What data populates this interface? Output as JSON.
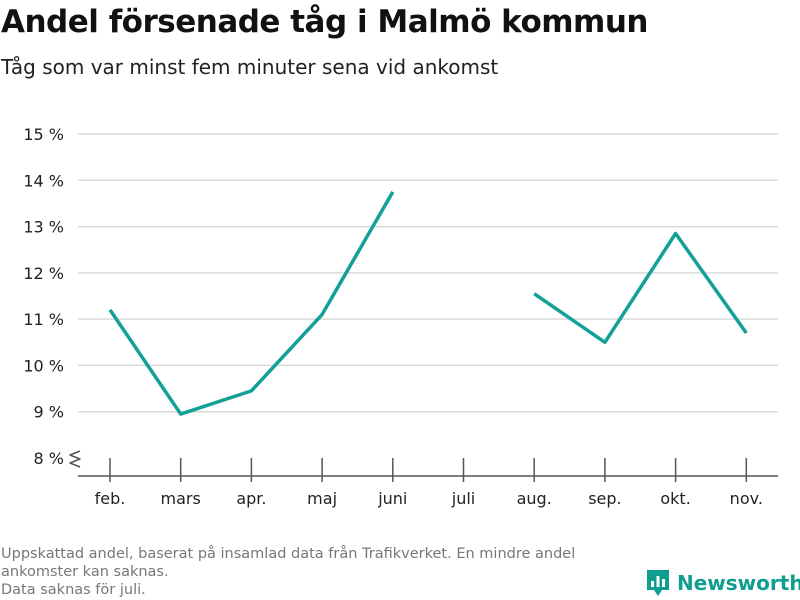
{
  "title": "Andel försenade tåg i Malmö kommun",
  "subtitle": "Tåg som var minst fem minuter sena vid ankomst",
  "footnote": [
    "Uppskattad andel, baserat på insamlad data från Trafikverket. En mindre andel",
    "ankomster kan saknas.",
    "Data saknas för juli."
  ],
  "brand": {
    "label": "Newsworthy",
    "color": "#0f9d90",
    "icon": "bar-chart-logo-icon"
  },
  "colors": {
    "line": "#13a096",
    "grid": "#d9d9d9",
    "axis": "#555555"
  },
  "chart_data": {
    "type": "line",
    "categories": [
      "feb.",
      "mars",
      "apr.",
      "maj",
      "juni",
      "juli",
      "aug.",
      "sep.",
      "okt.",
      "nov."
    ],
    "series": [
      {
        "values": [
          11.2,
          8.95,
          9.45,
          11.1,
          13.75,
          null,
          11.55,
          10.5,
          12.85,
          10.7
        ]
      }
    ],
    "ylim": [
      8,
      15
    ],
    "yticks": [
      8,
      9,
      10,
      11,
      12,
      13,
      14,
      15
    ],
    "ytick_labels": [
      "8 %",
      "9 %",
      "10 %",
      "11 %",
      "12 %",
      "13 %",
      "14 %",
      "15 %"
    ],
    "grid": true,
    "axis_break": true,
    "xlabel": "",
    "ylabel": ""
  }
}
